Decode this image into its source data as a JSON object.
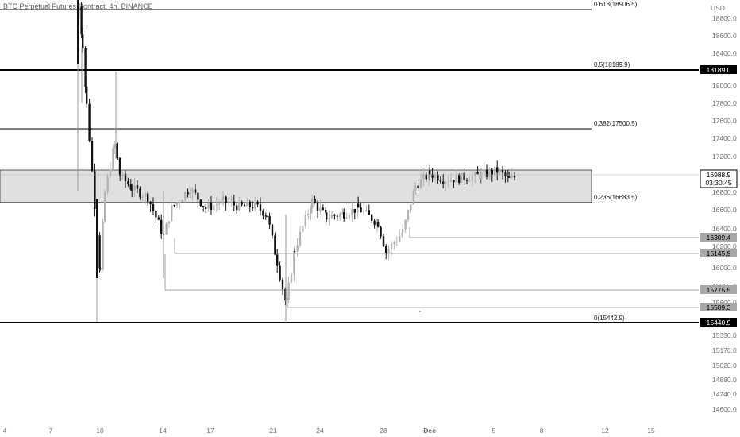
{
  "chart_title": "BTC Perpetual Futures Contract, 4h, BINANCE",
  "currency": "USD",
  "colors": {
    "up": "#b4b4b4",
    "down": "#111111",
    "fib_line": "#000000",
    "level_line": "#8a8a8a",
    "zone_fill": "#e0e0e0"
  },
  "chart_data": {
    "type": "candlestick",
    "title": "BTC Perpetual Futures Contract, 4h, BINANCE",
    "y_axis": {
      "unit": "USD",
      "range": [
        14530,
        18980
      ],
      "ticks": [
        "18800.0",
        "18600.0",
        "18400.0",
        "18200.0",
        "18000.0",
        "17800.0",
        "17600.0",
        "17400.0",
        "17200.0",
        "17000.0",
        "16800.0",
        "16600.0",
        "16400.0",
        "16200.0",
        "16000.0",
        "15800.0",
        "15600.0",
        "15400.0",
        "15330.0",
        "15170.0",
        "15020.0",
        "14880.0",
        "14740.0",
        "14600.0"
      ]
    },
    "x_axis": {
      "ticks": [
        "4",
        "7",
        "10",
        "14",
        "17",
        "21",
        "24",
        "28",
        "Dec",
        "5",
        "8",
        "12",
        "15"
      ]
    },
    "fibonacci": [
      {
        "label": "0.618(18906.5)",
        "price": 18906.5
      },
      {
        "label": "0.5(18189.9)",
        "price": 18189.9
      },
      {
        "label": "0.382(17500.5)",
        "price": 17500.5
      },
      {
        "label": "0.236(16683.5)",
        "price": 16683.5
      },
      {
        "label": "0(15442.9)",
        "price": 15442.9
      }
    ],
    "zone": {
      "top": 17050,
      "bottom": 16683.5
    },
    "price_tags": [
      {
        "value": "18189.0",
        "style": "dark"
      },
      {
        "value": "16988.9",
        "sub": "03:30:45",
        "style": "dark-outline"
      },
      {
        "value": "16309.4",
        "style": "gray"
      },
      {
        "value": "16145.9",
        "style": "gray"
      },
      {
        "value": "15775.5",
        "style": "gray"
      },
      {
        "value": "15589.3",
        "style": "gray"
      },
      {
        "value": "15440.9",
        "style": "dark"
      }
    ],
    "series": [
      {
        "name": "BTC Perpetual Futures Contract, 4h, BINANCE",
        "ohlc_close_path": [
          {
            "x": "8",
            "close": 18950
          },
          {
            "x": "9",
            "close": 18500
          },
          {
            "x": "9",
            "close": 17800
          },
          {
            "x": "10",
            "close": 16350
          },
          {
            "x": "10",
            "close": 15900
          },
          {
            "x": "10",
            "close": 16800
          },
          {
            "x": "11",
            "close": 17350
          },
          {
            "x": "11",
            "close": 17000
          },
          {
            "x": "12",
            "close": 16850
          },
          {
            "x": "13",
            "close": 16750
          },
          {
            "x": "14",
            "close": 16300
          },
          {
            "x": "14",
            "close": 16620
          },
          {
            "x": "15",
            "close": 16850
          },
          {
            "x": "16",
            "close": 16620
          },
          {
            "x": "17",
            "close": 16700
          },
          {
            "x": "18",
            "close": 16640
          },
          {
            "x": "19",
            "close": 16650
          },
          {
            "x": "20",
            "close": 16550
          },
          {
            "x": "21",
            "close": 16000
          },
          {
            "x": "22",
            "close": 15530
          },
          {
            "x": "22",
            "close": 16150
          },
          {
            "x": "23",
            "close": 16700
          },
          {
            "x": "24",
            "close": 16520
          },
          {
            "x": "25",
            "close": 16560
          },
          {
            "x": "26",
            "close": 16620
          },
          {
            "x": "27",
            "close": 16450
          },
          {
            "x": "28",
            "close": 16120
          },
          {
            "x": "29",
            "close": 16350
          },
          {
            "x": "29",
            "close": 16880
          },
          {
            "x": "30",
            "close": 17020
          },
          {
            "x": "Dec",
            "close": 16950
          },
          {
            "x": "2",
            "close": 16970
          },
          {
            "x": "3",
            "close": 17000
          },
          {
            "x": "4",
            "close": 17050
          },
          {
            "x": "5",
            "close": 16950
          },
          {
            "x": "5",
            "close": 16988.9
          }
        ]
      }
    ]
  }
}
